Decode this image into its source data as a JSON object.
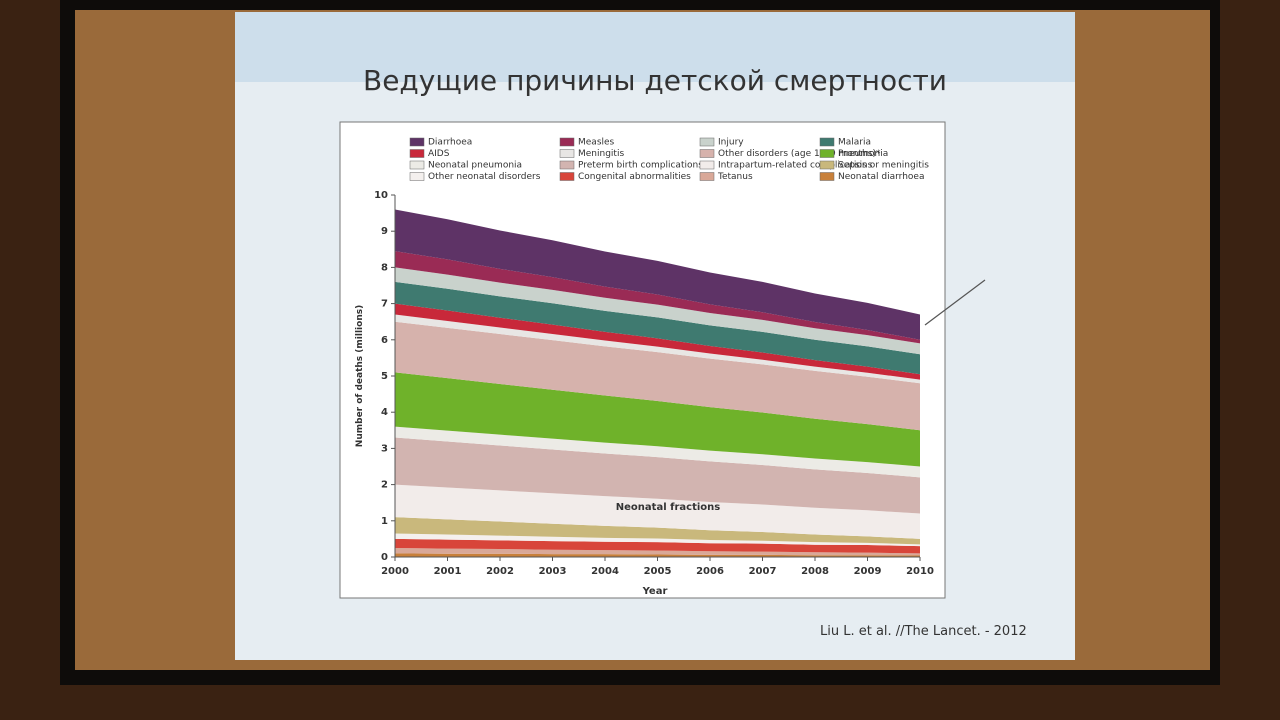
{
  "chart_data": {
    "type": "stacked-area",
    "title": "Ведущие причины детской смертности",
    "y_label": "Number of deaths (millions)",
    "x_label": "Year",
    "annotation": "Neonatal fractions",
    "citation": "Liu L. et al. //The Lancet. - 2012",
    "x": [
      2000,
      2001,
      2002,
      2003,
      2004,
      2005,
      2006,
      2007,
      2008,
      2009,
      2010
    ],
    "xlim": [
      2000,
      2010
    ],
    "xticks": [
      2000,
      2001,
      2002,
      2003,
      2004,
      2005,
      2006,
      2007,
      2008,
      2009,
      2010
    ],
    "ylim": [
      0,
      10
    ],
    "yticks": [
      0,
      1,
      2,
      3,
      4,
      5,
      6,
      7,
      8,
      9,
      10
    ],
    "series": [
      {
        "name": "Neonatal diarrhoea",
        "color": "#c8803a",
        "values": [
          0.1,
          0.09,
          0.09,
          0.08,
          0.08,
          0.07,
          0.06,
          0.06,
          0.05,
          0.05,
          0.04
        ]
      },
      {
        "name": "Tetanus",
        "color": "#d9a898",
        "values": [
          0.15,
          0.14,
          0.13,
          0.12,
          0.11,
          0.11,
          0.1,
          0.09,
          0.08,
          0.07,
          0.06
        ]
      },
      {
        "name": "Congenital abnormalities",
        "color": "#d8453a",
        "values": [
          0.25,
          0.25,
          0.24,
          0.24,
          0.23,
          0.23,
          0.22,
          0.22,
          0.21,
          0.21,
          0.2
        ]
      },
      {
        "name": "Other neonatal disorders",
        "color": "#f4f0ee",
        "values": [
          0.15,
          0.14,
          0.13,
          0.12,
          0.11,
          0.1,
          0.09,
          0.08,
          0.07,
          0.06,
          0.05
        ]
      },
      {
        "name": "Sepsis or meningitis",
        "color": "#c9b87c",
        "values": [
          0.45,
          0.42,
          0.39,
          0.36,
          0.33,
          0.3,
          0.27,
          0.24,
          0.21,
          0.18,
          0.15
        ]
      },
      {
        "name": "Intrapartum-related complications",
        "color": "#f2ecea",
        "values": [
          0.9,
          0.88,
          0.86,
          0.84,
          0.82,
          0.8,
          0.78,
          0.76,
          0.74,
          0.72,
          0.7
        ]
      },
      {
        "name": "Preterm birth complications",
        "color": "#d2b4b0",
        "values": [
          1.3,
          1.27,
          1.24,
          1.21,
          1.18,
          1.15,
          1.12,
          1.09,
          1.06,
          1.03,
          1.0
        ]
      },
      {
        "name": "Neonatal pneumonia",
        "color": "#ecebe6",
        "values": [
          0.3,
          0.3,
          0.3,
          0.3,
          0.3,
          0.3,
          0.3,
          0.3,
          0.3,
          0.3,
          0.3
        ]
      },
      {
        "name": "Pneumonia",
        "color": "#6fb22a",
        "values": [
          1.5,
          1.45,
          1.4,
          1.35,
          1.3,
          1.25,
          1.2,
          1.15,
          1.1,
          1.05,
          1.0
        ]
      },
      {
        "name": "Other disorders (age 1–59 months)*",
        "color": "#d6b2ac",
        "values": [
          1.4,
          1.39,
          1.38,
          1.37,
          1.36,
          1.35,
          1.34,
          1.33,
          1.32,
          1.31,
          1.3
        ]
      },
      {
        "name": "Meningitis",
        "color": "#e8e6e4",
        "values": [
          0.2,
          0.19,
          0.18,
          0.17,
          0.16,
          0.15,
          0.14,
          0.13,
          0.12,
          0.11,
          0.1
        ]
      },
      {
        "name": "AIDS",
        "color": "#c8283a",
        "values": [
          0.3,
          0.29,
          0.27,
          0.26,
          0.24,
          0.23,
          0.21,
          0.2,
          0.18,
          0.17,
          0.15
        ]
      },
      {
        "name": "Malaria",
        "color": "#3f7a70",
        "values": [
          0.6,
          0.6,
          0.59,
          0.59,
          0.58,
          0.58,
          0.57,
          0.57,
          0.56,
          0.56,
          0.55
        ]
      },
      {
        "name": "Injury",
        "color": "#c9d2cc",
        "values": [
          0.4,
          0.39,
          0.38,
          0.37,
          0.36,
          0.35,
          0.34,
          0.33,
          0.32,
          0.31,
          0.3
        ]
      },
      {
        "name": "Measles",
        "color": "#9a2b55",
        "values": [
          0.45,
          0.42,
          0.38,
          0.35,
          0.31,
          0.28,
          0.24,
          0.21,
          0.17,
          0.14,
          0.1
        ]
      },
      {
        "name": "Diarrhoea",
        "color": "#5e3366",
        "values": [
          1.15,
          1.11,
          1.06,
          1.02,
          0.97,
          0.93,
          0.88,
          0.84,
          0.79,
          0.75,
          0.7
        ]
      }
    ]
  }
}
